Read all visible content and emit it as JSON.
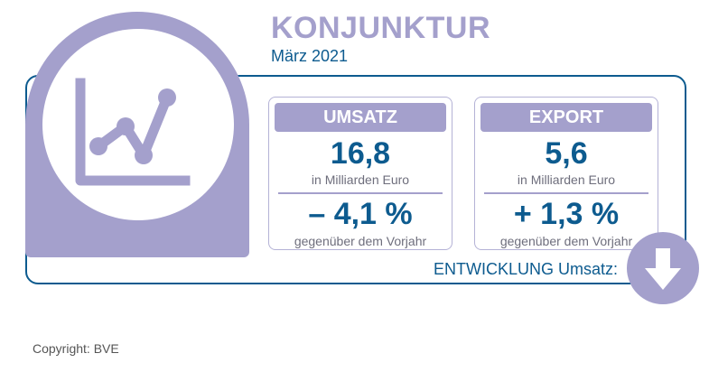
{
  "header": {
    "title": "KONJUNKTUR",
    "date": "März 2021"
  },
  "cards": [
    {
      "label": "UMSATZ",
      "value": "16,8",
      "unit": "in Milliarden Euro",
      "change": "– 4,1 %",
      "note": "gegenüber dem Vorjahr"
    },
    {
      "label": "EXPORT",
      "value": "5,6",
      "unit": "in Milliarden Euro",
      "change": "+ 1,3 %",
      "note": "gegenüber dem Vorjahr"
    }
  ],
  "trend": {
    "label": "ENTWICKLUNG Umsatz:",
    "direction_icon": "arrow-down-icon"
  },
  "footer": {
    "copyright": "Copyright: BVE"
  },
  "colors": {
    "purple": "#a4a0cc",
    "blue": "#0d5b8f",
    "gray_text": "#6e6e7c"
  },
  "icons": {
    "main": "line-chart-icon"
  }
}
